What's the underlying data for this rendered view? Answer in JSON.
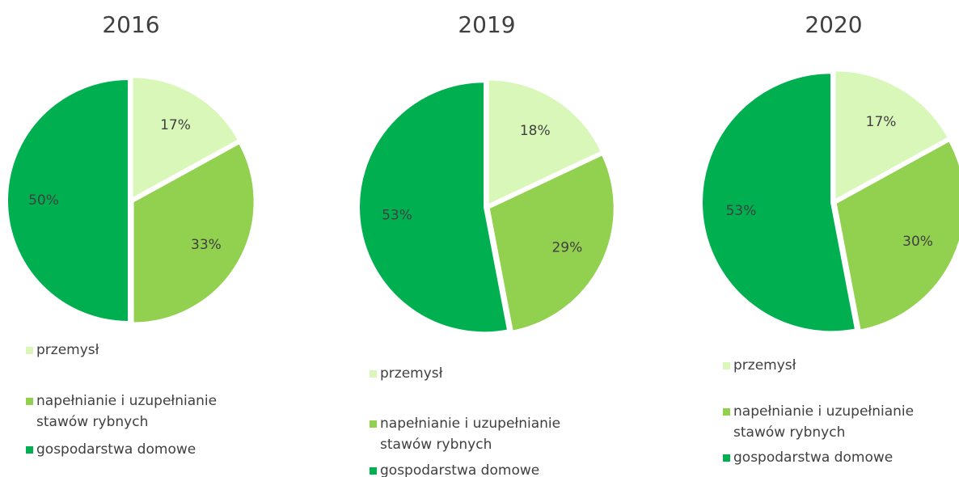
{
  "chart_data": [
    {
      "type": "pie",
      "title": "2016",
      "categories": [
        "przemysł",
        "napełnianie i uzupełnianie stawów rybnych",
        "gospodarstwa domowe"
      ],
      "values": [
        17,
        33,
        50
      ],
      "value_labels": [
        "17%",
        "33%",
        "50%"
      ],
      "colors": [
        "#d9f7b8",
        "#92d050",
        "#00b050"
      ]
    },
    {
      "type": "pie",
      "title": "2019",
      "categories": [
        "przemysł",
        "napełnianie i uzupełnianie stawów rybnych",
        "gospodarstwa domowe"
      ],
      "values": [
        18,
        29,
        53
      ],
      "value_labels": [
        "18%",
        "29%",
        "53%"
      ],
      "colors": [
        "#d9f7b8",
        "#92d050",
        "#00b050"
      ]
    },
    {
      "type": "pie",
      "title": "2020",
      "categories": [
        "przemysł",
        "napełnianie i uzupełnianie stawów rybnych",
        "gospodarstwa domowe"
      ],
      "values": [
        17,
        30,
        53
      ],
      "value_labels": [
        "17%",
        "30%",
        "53%"
      ],
      "colors": [
        "#d9f7b8",
        "#92d050",
        "#00b050"
      ]
    }
  ]
}
